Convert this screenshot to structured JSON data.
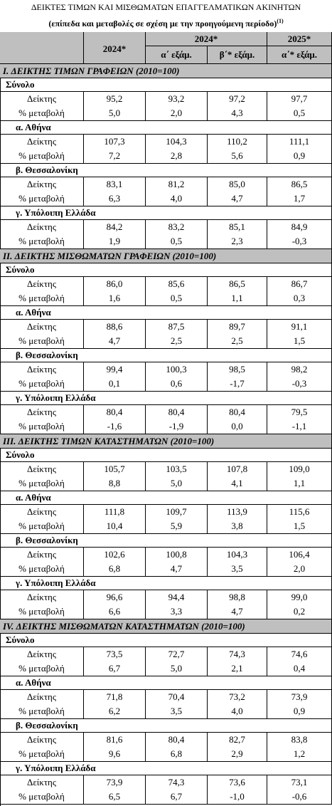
{
  "title": "ΔΕΙΚΤΕΣ ΤΙΜΩΝ ΚΑΙ ΜΙΣΘΩΜΑΤΩΝ ΕΠΑΓΓΕΛΜΑΤΙΚΩΝ ΑΚΙΝΗΤΩΝ",
  "subtitle": "(επίπεδα και μεταβολές σε σχέση με την προηγούμενη περίοδο)",
  "subtitle_note": "(1)",
  "header": {
    "col1": "2024*",
    "group1": "2024*",
    "group2": "2025*",
    "sub": [
      "α΄  εξάμ.",
      "β΄*  εξάμ.",
      "α΄*  εξάμ."
    ]
  },
  "sections": [
    {
      "title": "I. ΔΕΙΚΤΗΣ ΤΙΜΩΝ ΓΡΑΦΕΙΩΝ (2010=100)",
      "groups": [
        {
          "name": "Σύνολο",
          "rows": [
            {
              "label": "Δείκτης",
              "values": [
                "95,2",
                "93,2",
                "97,2",
                "97,7"
              ]
            },
            {
              "label": "% μεταβολή",
              "values": [
                "5,0",
                "2,0",
                "4,3",
                "0,5"
              ]
            }
          ]
        },
        {
          "name": "α.  Αθήνα",
          "rows": [
            {
              "label": "Δείκτης",
              "values": [
                "107,3",
                "104,3",
                "110,2",
                "111,1"
              ]
            },
            {
              "label": "% μεταβολή",
              "values": [
                "7,2",
                "2,8",
                "5,6",
                "0,9"
              ]
            }
          ]
        },
        {
          "name": "β.  Θεσσαλονίκη",
          "rows": [
            {
              "label": "Δείκτης",
              "values": [
                "83,1",
                "81,2",
                "85,0",
                "86,5"
              ]
            },
            {
              "label": "% μεταβολή",
              "values": [
                "6,3",
                "4,0",
                "4,7",
                "1,7"
              ]
            }
          ]
        },
        {
          "name": "γ. Υπόλοιπη Ελλάδα",
          "rows": [
            {
              "label": "Δείκτης",
              "values": [
                "84,2",
                "83,2",
                "85,1",
                "84,9"
              ]
            },
            {
              "label": "% μεταβολή",
              "values": [
                "1,9",
                "0,5",
                "2,3",
                "-0,3"
              ]
            }
          ]
        }
      ]
    },
    {
      "title": "II. ΔΕΙΚΤΗΣ ΜΙΣΘΩΜΑΤΩΝ ΓΡΑΦΕΙΩΝ (2010=100)",
      "groups": [
        {
          "name": "Σύνολο",
          "rows": [
            {
              "label": "Δείκτης",
              "values": [
                "86,0",
                "85,6",
                "86,5",
                "86,7"
              ]
            },
            {
              "label": "% μεταβολή",
              "values": [
                "1,6",
                "0,5",
                "1,1",
                "0,3"
              ]
            }
          ]
        },
        {
          "name": "α.  Αθήνα",
          "rows": [
            {
              "label": "Δείκτης",
              "values": [
                "88,6",
                "87,5",
                "89,7",
                "91,1"
              ]
            },
            {
              "label": "% μεταβολή",
              "values": [
                "4,7",
                "2,5",
                "2,5",
                "1,5"
              ]
            }
          ]
        },
        {
          "name": "β.  Θεσσαλονίκη",
          "rows": [
            {
              "label": "Δείκτης",
              "values": [
                "99,4",
                "100,3",
                "98,5",
                "98,2"
              ]
            },
            {
              "label": "% μεταβολή",
              "values": [
                "0,1",
                "0,6",
                "-1,7",
                "-0,3"
              ]
            }
          ]
        },
        {
          "name": "γ. Υπόλοιπη Ελλάδα",
          "rows": [
            {
              "label": "Δείκτης",
              "values": [
                "80,4",
                "80,4",
                "80,4",
                "79,5"
              ]
            },
            {
              "label": "% μεταβολή",
              "values": [
                "-1,6",
                "-1,9",
                "0,0",
                "-1,1"
              ]
            }
          ]
        }
      ]
    },
    {
      "title": "III. ΔΕΙΚΤΗΣ ΤΙΜΩΝ ΚΑΤΑΣΤΗΜΑΤΩΝ (2010=100)",
      "groups": [
        {
          "name": "Σύνολο",
          "rows": [
            {
              "label": "Δείκτης",
              "values": [
                "105,7",
                "103,5",
                "107,8",
                "109,0"
              ]
            },
            {
              "label": "% μεταβολή",
              "values": [
                "8,8",
                "5,0",
                "4,1",
                "1,1"
              ]
            }
          ]
        },
        {
          "name": "α.  Αθήνα",
          "rows": [
            {
              "label": "Δείκτης",
              "values": [
                "111,8",
                "109,7",
                "113,9",
                "115,6"
              ]
            },
            {
              "label": "% μεταβολή",
              "values": [
                "10,4",
                "5,9",
                "3,8",
                "1,5"
              ]
            }
          ]
        },
        {
          "name": "β.  Θεσσαλονίκη",
          "rows": [
            {
              "label": "Δείκτης",
              "values": [
                "102,6",
                "100,8",
                "104,3",
                "106,4"
              ]
            },
            {
              "label": "% μεταβολή",
              "values": [
                "6,8",
                "4,7",
                "3,5",
                "2,0"
              ]
            }
          ]
        },
        {
          "name": "γ. Υπόλοιπη Ελλάδα",
          "rows": [
            {
              "label": "Δείκτης",
              "values": [
                "96,6",
                "94,4",
                "98,8",
                "99,0"
              ]
            },
            {
              "label": "% μεταβολή",
              "values": [
                "6,6",
                "3,3",
                "4,7",
                "0,2"
              ]
            }
          ]
        }
      ]
    },
    {
      "title": "IV. ΔΕΙΚΤΗΣ ΜΙΣΘΩΜΑΤΩΝ ΚΑΤΑΣΤΗΜΑΤΩΝ (2010=100)",
      "groups": [
        {
          "name": "Σύνολο",
          "rows": [
            {
              "label": "Δείκτης",
              "values": [
                "73,5",
                "72,7",
                "74,3",
                "74,6"
              ]
            },
            {
              "label": "% μεταβολή",
              "values": [
                "6,7",
                "5,0",
                "2,1",
                "0,4"
              ]
            }
          ]
        },
        {
          "name": "α.  Αθήνα",
          "rows": [
            {
              "label": "Δείκτης",
              "values": [
                "71,8",
                "70,4",
                "73,2",
                "73,9"
              ]
            },
            {
              "label": "% μεταβολή",
              "values": [
                "6,2",
                "3,5",
                "4,0",
                "0,9"
              ]
            }
          ]
        },
        {
          "name": "β.  Θεσσαλονίκη",
          "rows": [
            {
              "label": "Δείκτης",
              "values": [
                "81,6",
                "80,4",
                "82,7",
                "83,8"
              ]
            },
            {
              "label": "% μεταβολή",
              "values": [
                "9,6",
                "6,8",
                "2,9",
                "1,2"
              ]
            }
          ]
        },
        {
          "name": "γ. Υπόλοιπη Ελλάδα",
          "rows": [
            {
              "label": "Δείκτης",
              "values": [
                "73,9",
                "74,3",
                "73,6",
                "73,1"
              ]
            },
            {
              "label": "% μεταβολή",
              "values": [
                "6,5",
                "6,7",
                "-1,0",
                "-0,6"
              ]
            }
          ]
        }
      ]
    }
  ]
}
